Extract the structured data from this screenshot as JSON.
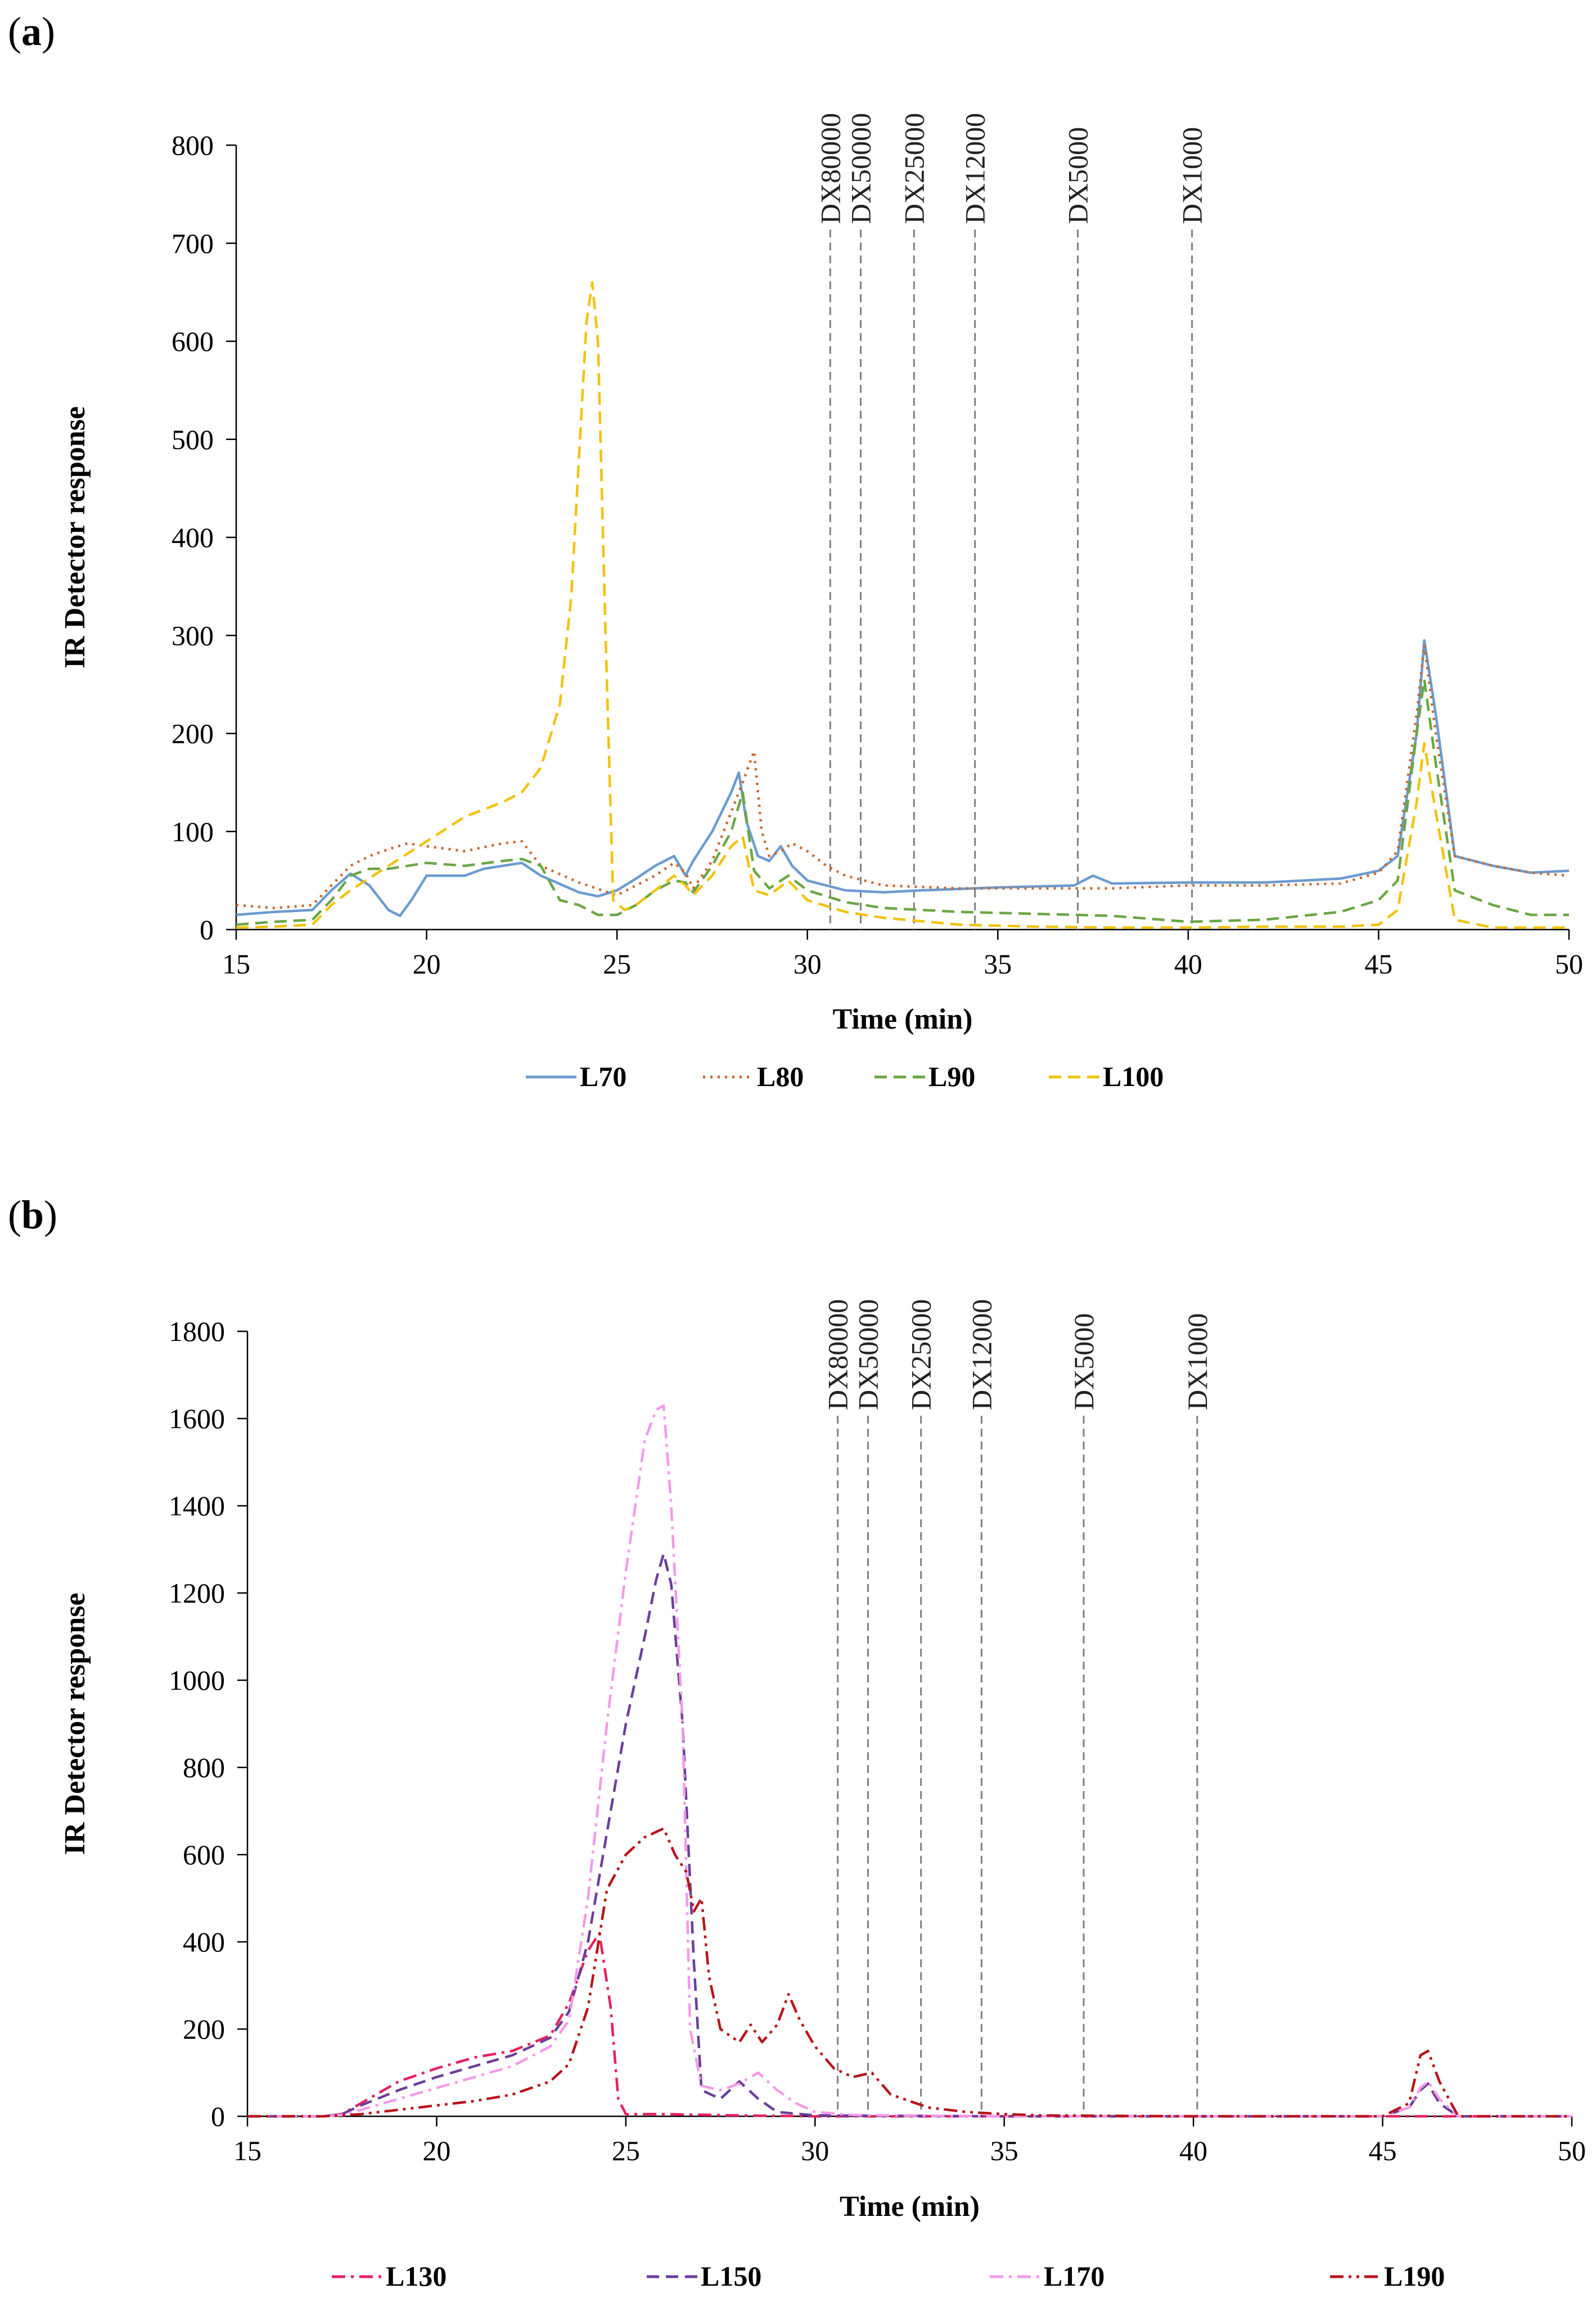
{
  "panels": [
    {
      "label": "(a)",
      "label_plain": "(",
      "label_bold": "a",
      "label_close": ")",
      "title": ""
    },
    {
      "label": "(b)",
      "label_plain": "(",
      "label_bold": "b",
      "label_close": ")",
      "title": ""
    }
  ],
  "chart_data": [
    {
      "type": "line",
      "panel": "a",
      "xlabel": "Time (min)",
      "ylabel": "IR Detector response",
      "xlim": [
        15,
        50
      ],
      "ylim": [
        0,
        800
      ],
      "xticks": [
        15,
        20,
        25,
        30,
        35,
        40,
        45,
        50
      ],
      "yticks": [
        0,
        100,
        200,
        300,
        400,
        500,
        600,
        700,
        800
      ],
      "legend_position": "bottom",
      "standards": [
        {
          "name": "DX80000",
          "x": 30.6
        },
        {
          "name": "DX50000",
          "x": 31.4
        },
        {
          "name": "DX25000",
          "x": 32.8
        },
        {
          "name": "DX12000",
          "x": 34.4
        },
        {
          "name": "DX5000",
          "x": 37.1
        },
        {
          "name": "DX1000",
          "x": 40.1
        }
      ],
      "series": [
        {
          "name": "L70",
          "color": "#6b9bd0",
          "dash": "solid",
          "x": [
            15,
            16,
            17,
            17.5,
            18,
            18.5,
            19,
            19.3,
            19.6,
            20,
            20.5,
            21,
            21.5,
            22,
            22.5,
            23,
            24,
            24.5,
            25,
            25.5,
            26,
            26.5,
            26.8,
            27,
            27.5,
            28,
            28.2,
            28.4,
            28.7,
            29,
            29.3,
            29.6,
            30,
            31,
            32,
            33,
            35,
            37,
            37.5,
            38,
            40,
            42,
            44,
            45,
            45.5,
            46,
            46.2,
            46.5,
            47,
            48,
            49,
            50
          ],
          "y": [
            15,
            18,
            20,
            40,
            57,
            45,
            20,
            14,
            30,
            55,
            55,
            55,
            62,
            65,
            68,
            55,
            38,
            34,
            40,
            52,
            65,
            75,
            55,
            70,
            100,
            140,
            160,
            110,
            75,
            70,
            85,
            65,
            50,
            40,
            38,
            40,
            43,
            45,
            55,
            47,
            48,
            48,
            52,
            60,
            75,
            200,
            295,
            220,
            75,
            65,
            58,
            60
          ]
        },
        {
          "name": "L80",
          "color": "#c8672e",
          "dash": "dotted",
          "x": [
            15,
            16,
            17,
            17.5,
            18,
            18.5,
            19,
            19.5,
            20,
            21,
            22,
            22.5,
            23,
            24,
            25,
            25.5,
            26,
            26.5,
            26.8,
            27,
            27.5,
            28,
            28.3,
            28.6,
            28.8,
            29,
            29.3,
            29.6,
            30,
            30.5,
            31,
            32,
            34,
            36,
            38,
            40,
            42,
            44,
            45,
            45.5,
            46,
            46.2,
            46.5,
            47,
            48,
            49,
            50
          ],
          "y": [
            25,
            22,
            25,
            45,
            65,
            75,
            82,
            88,
            85,
            80,
            88,
            90,
            65,
            48,
            35,
            45,
            55,
            68,
            58,
            42,
            70,
            120,
            150,
            182,
            100,
            75,
            80,
            88,
            80,
            65,
            55,
            45,
            42,
            42,
            42,
            45,
            45,
            47,
            58,
            80,
            220,
            290,
            200,
            75,
            65,
            58,
            55
          ]
        },
        {
          "name": "L90",
          "color": "#6aa643",
          "dash": "dashed",
          "x": [
            15,
            16,
            17,
            17.5,
            18,
            18.5,
            19,
            20,
            21,
            22,
            22.5,
            23,
            23.5,
            24,
            24.5,
            25,
            25.5,
            26,
            26.5,
            26.8,
            27,
            27.5,
            28,
            28.3,
            28.6,
            29,
            29.5,
            30,
            31,
            32,
            34,
            36,
            38,
            40,
            42,
            44,
            45,
            45.5,
            46,
            46.2,
            46.5,
            47,
            48,
            49,
            50
          ],
          "y": [
            5,
            8,
            10,
            30,
            55,
            62,
            62,
            68,
            65,
            70,
            72,
            65,
            30,
            25,
            15,
            15,
            25,
            40,
            50,
            48,
            38,
            65,
            100,
            140,
            60,
            42,
            55,
            40,
            28,
            22,
            18,
            16,
            14,
            8,
            10,
            18,
            30,
            50,
            200,
            255,
            170,
            40,
            25,
            15,
            15
          ]
        },
        {
          "name": "L100",
          "color": "#f2c20f",
          "dash": "dashed",
          "x": [
            15,
            16,
            17,
            17.5,
            18,
            19,
            20,
            21,
            22,
            22.5,
            23,
            23.5,
            23.8,
            24,
            24.2,
            24.35,
            24.5,
            24.7,
            24.9,
            25.2,
            25.5,
            26,
            26.5,
            26.8,
            27,
            27.5,
            28,
            28.3,
            28.6,
            29,
            29.5,
            30,
            31,
            32,
            34,
            36,
            38,
            40,
            42,
            44,
            45,
            45.5,
            46,
            46.2,
            46.5,
            47,
            48,
            50
          ],
          "y": [
            2,
            3,
            5,
            25,
            40,
            65,
            90,
            115,
            130,
            140,
            165,
            230,
            340,
            480,
            620,
            660,
            600,
            300,
            30,
            20,
            25,
            40,
            55,
            45,
            35,
            55,
            85,
            95,
            40,
            35,
            50,
            30,
            18,
            12,
            5,
            3,
            2,
            2,
            3,
            3,
            5,
            20,
            130,
            190,
            120,
            10,
            2,
            2
          ]
        }
      ]
    },
    {
      "type": "line",
      "panel": "b",
      "xlabel": "Time (min)",
      "ylabel": "IR Detector response",
      "xlim": [
        15,
        50
      ],
      "ylim": [
        0,
        1800
      ],
      "xticks": [
        15,
        20,
        25,
        30,
        35,
        40,
        45,
        50
      ],
      "yticks": [
        0,
        200,
        400,
        600,
        800,
        1000,
        1200,
        1400,
        1600,
        1800
      ],
      "legend_position": "bottom",
      "standards": [
        {
          "name": "DX80000",
          "x": 30.6
        },
        {
          "name": "DX50000",
          "x": 31.4
        },
        {
          "name": "DX25000",
          "x": 32.8
        },
        {
          "name": "DX12000",
          "x": 34.4
        },
        {
          "name": "DX5000",
          "x": 37.1
        },
        {
          "name": "DX1000",
          "x": 40.1
        }
      ],
      "series": [
        {
          "name": "L130",
          "color": "#e8205e",
          "dash": "dashdot",
          "x": [
            15,
            17,
            17.5,
            18,
            19,
            20,
            21,
            22,
            23,
            23.5,
            24,
            24.3,
            24.6,
            24.8,
            25,
            26,
            28,
            30,
            35,
            40,
            45,
            50
          ],
          "y": [
            0,
            0,
            5,
            30,
            80,
            110,
            135,
            150,
            185,
            260,
            380,
            420,
            250,
            40,
            5,
            5,
            2,
            0,
            0,
            0,
            0,
            0
          ]
        },
        {
          "name": "L150",
          "color": "#6a3d9a",
          "dash": "dashed",
          "x": [
            15,
            17,
            17.5,
            18,
            19,
            20,
            21,
            22,
            23,
            23.5,
            24,
            24.5,
            25,
            25.5,
            25.8,
            26,
            26.2,
            26.5,
            26.8,
            27,
            27.5,
            28,
            28.5,
            29,
            30,
            35,
            45,
            45.7,
            46,
            46.2,
            46.5,
            47,
            50
          ],
          "y": [
            0,
            0,
            5,
            25,
            60,
            90,
            115,
            140,
            180,
            240,
            400,
            650,
            900,
            1100,
            1230,
            1290,
            1220,
            900,
            350,
            60,
            40,
            80,
            40,
            10,
            2,
            0,
            0,
            20,
            60,
            75,
            30,
            0,
            0
          ]
        },
        {
          "name": "L170",
          "color": "#f39ae8",
          "dash": "dashdot",
          "x": [
            15,
            17,
            17.5,
            18,
            19,
            20,
            21,
            22,
            23,
            23.5,
            24,
            24.5,
            25,
            25.5,
            25.8,
            26,
            26.2,
            26.5,
            26.7,
            27,
            27.5,
            28,
            28.5,
            29,
            29.5,
            30,
            31,
            35,
            45,
            45.7,
            46,
            46.2,
            46.5,
            47,
            50
          ],
          "y": [
            0,
            0,
            3,
            15,
            40,
            65,
            90,
            115,
            160,
            220,
            500,
            900,
            1250,
            1550,
            1620,
            1630,
            1400,
            900,
            200,
            70,
            60,
            75,
            100,
            60,
            30,
            10,
            3,
            0,
            0,
            20,
            65,
            80,
            40,
            0,
            0
          ]
        },
        {
          "name": "L190",
          "color": "#b7141b",
          "dash": "dashdotdot",
          "x": [
            15,
            17,
            18,
            19,
            20,
            21,
            22,
            23,
            23.5,
            24,
            24.5,
            25,
            25.5,
            26,
            26.3,
            26.6,
            26.8,
            27,
            27.2,
            27.5,
            28,
            28.3,
            28.6,
            29,
            29.3,
            29.6,
            30,
            30.5,
            31,
            31.5,
            32,
            33,
            34,
            35,
            36,
            40,
            45,
            45.7,
            46,
            46.2,
            46.5,
            47,
            50
          ],
          "y": [
            0,
            0,
            5,
            15,
            25,
            35,
            50,
            80,
            120,
            250,
            520,
            600,
            640,
            660,
            600,
            560,
            470,
            500,
            320,
            200,
            170,
            210,
            170,
            210,
            280,
            220,
            160,
            110,
            90,
            100,
            50,
            20,
            10,
            5,
            2,
            0,
            0,
            30,
            140,
            150,
            80,
            0,
            0
          ]
        }
      ]
    }
  ]
}
